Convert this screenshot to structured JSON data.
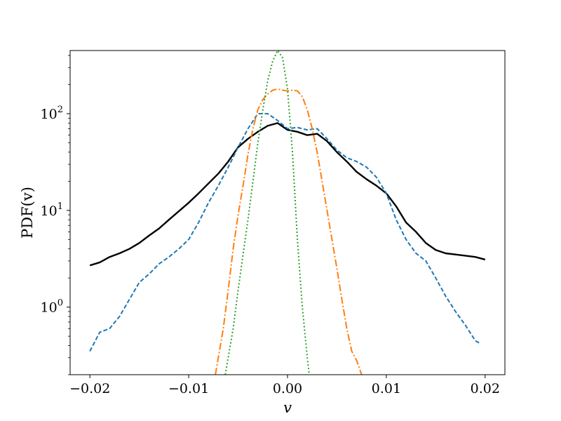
{
  "chart_data": {
    "type": "line",
    "title": "",
    "xlabel": "v",
    "ylabel": "PDF(v)",
    "xlim": [
      -0.022,
      0.022
    ],
    "ylim": [
      0.2,
      450
    ],
    "yscale": "log",
    "grid": false,
    "legend": "none",
    "x_ticks": [
      {
        "value": -0.02,
        "label": "−0.02"
      },
      {
        "value": -0.01,
        "label": "−0.01"
      },
      {
        "value": 0.0,
        "label": "0.00"
      },
      {
        "value": 0.01,
        "label": "0.01"
      },
      {
        "value": 0.02,
        "label": "0.02"
      }
    ],
    "y_ticks": [
      {
        "value": 1,
        "base": "10",
        "exp": "0"
      },
      {
        "value": 10,
        "base": "10",
        "exp": "1"
      },
      {
        "value": 100,
        "base": "10",
        "exp": "2"
      }
    ],
    "series": [
      {
        "color": "#000000",
        "style": "solid",
        "width": 2.4,
        "x": [
          -0.02,
          -0.019,
          -0.018,
          -0.017,
          -0.016,
          -0.015,
          -0.014,
          -0.013,
          -0.012,
          -0.011,
          -0.01,
          -0.009,
          -0.008,
          -0.007,
          -0.006,
          -0.005,
          -0.004,
          -0.003,
          -0.002,
          -0.001,
          0.0,
          0.001,
          0.002,
          0.003,
          0.004,
          0.005,
          0.006,
          0.007,
          0.008,
          0.009,
          0.01,
          0.011,
          0.012,
          0.013,
          0.014,
          0.015,
          0.016,
          0.017,
          0.018,
          0.019,
          0.02
        ],
        "y": [
          2.7,
          2.9,
          3.3,
          3.6,
          4.0,
          4.6,
          5.5,
          6.5,
          8.0,
          9.8,
          12.0,
          15.0,
          19.0,
          24.0,
          32.0,
          45.0,
          55.0,
          65.0,
          75.0,
          80.0,
          68.0,
          65.0,
          60.0,
          62.0,
          52.0,
          40.0,
          32.0,
          25.0,
          21.0,
          18.0,
          15.0,
          11.0,
          7.5,
          6.0,
          4.6,
          3.9,
          3.6,
          3.5,
          3.4,
          3.3,
          3.1
        ]
      },
      {
        "color": "#1f77b4",
        "style": "dashed",
        "width": 2,
        "x": [
          -0.02,
          -0.019,
          -0.018,
          -0.017,
          -0.016,
          -0.015,
          -0.014,
          -0.013,
          -0.012,
          -0.011,
          -0.01,
          -0.009,
          -0.008,
          -0.007,
          -0.006,
          -0.005,
          -0.004,
          -0.003,
          -0.002,
          -0.001,
          0.0,
          0.001,
          0.002,
          0.003,
          0.004,
          0.005,
          0.006,
          0.007,
          0.008,
          0.009,
          0.01,
          0.011,
          0.012,
          0.013,
          0.014,
          0.015,
          0.016,
          0.017,
          0.018,
          0.019,
          0.0195
        ],
        "y": [
          0.35,
          0.55,
          0.6,
          0.8,
          1.2,
          1.8,
          2.2,
          2.8,
          3.3,
          4.0,
          5.0,
          7.5,
          12.0,
          18.0,
          28.0,
          45.0,
          70.0,
          100.0,
          100.0,
          85.0,
          70.0,
          72.0,
          68.0,
          70.0,
          55.0,
          42.0,
          35.0,
          32.0,
          28.0,
          22.0,
          15.0,
          8.0,
          5.0,
          3.6,
          3.0,
          2.0,
          1.3,
          0.9,
          0.65,
          0.45,
          0.42
        ]
      },
      {
        "color": "#ff7f0e",
        "style": "dashdot",
        "width": 2,
        "x": [
          -0.0073,
          -0.0065,
          -0.006,
          -0.0055,
          -0.005,
          -0.0045,
          -0.004,
          -0.0035,
          -0.003,
          -0.0025,
          -0.002,
          -0.0015,
          -0.001,
          -0.0005,
          0.0,
          0.0005,
          0.001,
          0.0015,
          0.002,
          0.0025,
          0.003,
          0.0035,
          0.004,
          0.0045,
          0.005,
          0.0055,
          0.006,
          0.0065,
          0.007,
          0.0075
        ],
        "y": [
          0.2,
          0.6,
          1.5,
          4.0,
          9.0,
          18.0,
          38.0,
          70.0,
          110.0,
          140.0,
          160.0,
          175.0,
          180.0,
          175.0,
          172.0,
          175.0,
          172.0,
          150.0,
          110.0,
          70.0,
          40.0,
          20.0,
          10.0,
          5.0,
          2.5,
          1.2,
          0.6,
          0.35,
          0.28,
          0.2
        ]
      },
      {
        "color": "#2ca02c",
        "style": "dotted",
        "width": 2,
        "x": [
          -0.0063,
          -0.0055,
          -0.005,
          -0.0045,
          -0.004,
          -0.0035,
          -0.003,
          -0.0025,
          -0.002,
          -0.0015,
          -0.001,
          -0.0005,
          0.0,
          0.0005,
          0.001,
          0.0015,
          0.002,
          0.0022
        ],
        "y": [
          0.2,
          0.6,
          1.5,
          3.5,
          8.0,
          20.0,
          50.0,
          110.0,
          220.0,
          350.0,
          450.0,
          380.0,
          180.0,
          40.0,
          5.0,
          1.0,
          0.3,
          0.2
        ]
      }
    ]
  }
}
